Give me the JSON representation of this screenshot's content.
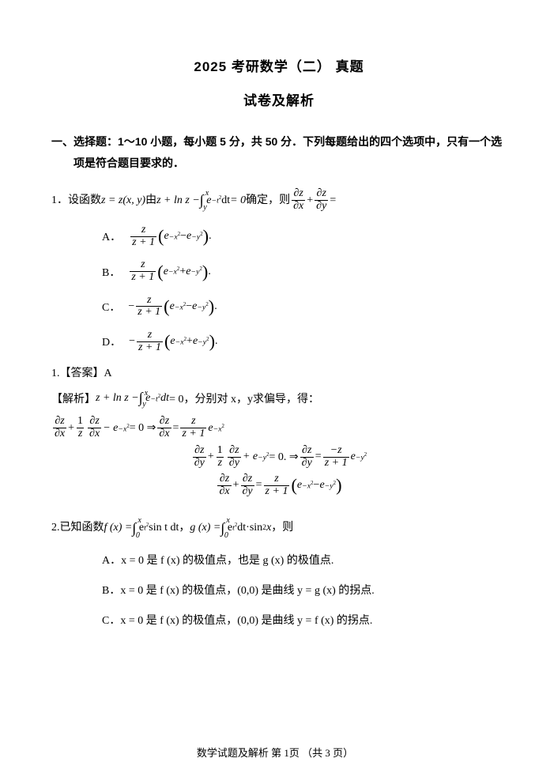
{
  "colors": {
    "text": "#000000",
    "background": "#ffffff"
  },
  "typography": {
    "title_fontsize": 17,
    "title_weight": "bold",
    "title_family": "SimHei",
    "body_fontsize": 14,
    "body_family": "SimSun",
    "footer_fontsize": 13,
    "footer_family": "KaiTi"
  },
  "title": "2025 考研数学（二） 真题",
  "subtitle": "试卷及解析",
  "section1_line1": "一、选择题：1～10 小题，每小题 5 分，共 50 分．下列每题给出的四个选项中，只有一个选",
  "section1_line2": "项是符合题目要求的．",
  "q1": {
    "num": "1．",
    "stem_a": "设函数 ",
    "stem_b": " 由 ",
    "stem_c": " 确定，则 ",
    "eq_lhs": "z = z(x, y)",
    "eq_def_pre": "z + ln z −",
    "eq_def_post": " = 0",
    "int_lo": "y",
    "int_hi": "x",
    "int_body": "e",
    "int_exp": "−t",
    "int_exp2": "2",
    "int_dt": "dt",
    "rhs_a": "∂z",
    "rhs_b": "∂x",
    "rhs_c": "∂y",
    "options": {
      "A": {
        "label": "A．",
        "sign": "",
        "expr_tail": "."
      },
      "B": {
        "label": "B．",
        "sign": "",
        "expr_tail": "."
      },
      "C": {
        "label": "C．",
        "sign": "−",
        "expr_tail": "."
      },
      "D": {
        "label": "D．",
        "sign": "−",
        "expr_tail": "."
      }
    },
    "opt_exp_x": "−x",
    "opt_exp_y": "−y",
    "opt_sq": "2",
    "opt_minus": " − ",
    "opt_plus": " + ",
    "frac_num": "z",
    "frac_den": "z + 1",
    "answer_label": "1.【答案】A",
    "analysis_label": "【解析】",
    "analysis_text_a": " z + ln z − ",
    "analysis_text_b": " = 0，分别对 x，y求偏导，得：",
    "line1_a": " − e",
    "line1_b": " = 0 ⇒ ",
    "line1_c": " e",
    "line2_a": " + e",
    "line2_b": " = 0. ⇒ ",
    "line2_c": " e",
    "neg_z": "−z",
    "one": "1",
    "z": "z",
    "plus": " + ",
    "eq": " = "
  },
  "q2": {
    "num": "2.",
    "stem_a": "已知函数 ",
    "stem_b": " ， ",
    "stem_c": " ，则",
    "f_lhs": "f (x) =",
    "g_lhs": "g (x) =",
    "int0": "0",
    "intx": "x",
    "e": "e",
    "t2": "t",
    "sq": "2",
    "sint": " sin t dt",
    "dt": "dt",
    "dot": "·",
    "sin2x": "sin",
    "xvar": " x",
    "optA": "A．x = 0 是 f (x) 的极值点，也是 g (x) 的极值点.",
    "optB": "B．x = 0 是 f (x) 的极值点，(0,0) 是曲线 y = g (x) 的拐点.",
    "optC": "C．x = 0 是 f (x) 的极值点，(0,0) 是曲线 y = f (x) 的拐点."
  },
  "footer": "数学试题及解析   第 1页 （共 3 页）"
}
